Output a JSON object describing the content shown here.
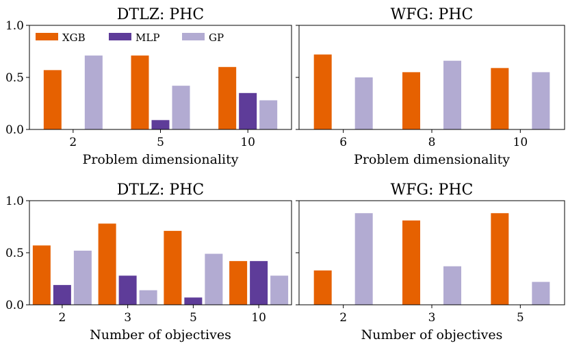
{
  "colors": {
    "XGB": "#e66101",
    "MLP": "#5e3c99",
    "GP": "#b2abd2"
  },
  "chart_data": [
    {
      "type": "bar",
      "title": "DTLZ: PHC",
      "xlabel": "Problem dimensionality",
      "ylabel": "",
      "ylim": [
        0,
        1.0
      ],
      "yticks": [
        "0.0",
        "0.5",
        "1.0"
      ],
      "categories": [
        "2",
        "5",
        "10"
      ],
      "legend": "top-left",
      "series": [
        {
          "name": "XGB",
          "values": [
            0.57,
            0.71,
            0.6
          ]
        },
        {
          "name": "MLP",
          "values": [
            0.0,
            0.09,
            0.35
          ]
        },
        {
          "name": "GP",
          "values": [
            0.71,
            0.42,
            0.28
          ]
        }
      ]
    },
    {
      "type": "bar",
      "title": "WFG: PHC",
      "xlabel": "Problem dimensionality",
      "ylabel": "",
      "ylim": [
        0,
        1.0
      ],
      "yticks": [
        "",
        "",
        ""
      ],
      "categories": [
        "6",
        "8",
        "10"
      ],
      "legend": "",
      "series": [
        {
          "name": "XGB",
          "values": [
            0.72,
            0.55,
            0.59
          ]
        },
        {
          "name": "MLP",
          "values": [
            0.0,
            0.0,
            0.0
          ]
        },
        {
          "name": "GP",
          "values": [
            0.5,
            0.66,
            0.55
          ]
        }
      ]
    },
    {
      "type": "bar",
      "title": "DTLZ: PHC",
      "xlabel": "Number of objectives",
      "ylabel": "",
      "ylim": [
        0,
        1.0
      ],
      "yticks": [
        "0.0",
        "0.5",
        "1.0"
      ],
      "categories": [
        "2",
        "3",
        "5",
        "10"
      ],
      "legend": "",
      "series": [
        {
          "name": "XGB",
          "values": [
            0.57,
            0.78,
            0.71,
            0.42
          ]
        },
        {
          "name": "MLP",
          "values": [
            0.19,
            0.28,
            0.07,
            0.42
          ]
        },
        {
          "name": "GP",
          "values": [
            0.52,
            0.14,
            0.49,
            0.28
          ]
        }
      ]
    },
    {
      "type": "bar",
      "title": "WFG: PHC",
      "xlabel": "Number of objectives",
      "ylabel": "",
      "ylim": [
        0,
        1.0
      ],
      "yticks": [
        "",
        "",
        ""
      ],
      "categories": [
        "2",
        "3",
        "5"
      ],
      "legend": "",
      "series": [
        {
          "name": "XGB",
          "values": [
            0.33,
            0.81,
            0.88
          ]
        },
        {
          "name": "MLP",
          "values": [
            0.0,
            0.0,
            0.0
          ]
        },
        {
          "name": "GP",
          "values": [
            0.88,
            0.37,
            0.22
          ]
        }
      ]
    }
  ]
}
